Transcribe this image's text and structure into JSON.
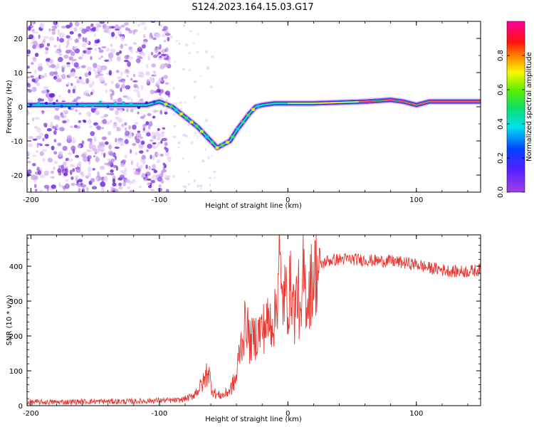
{
  "title": "S124.2023.164.15.03.G17",
  "chart_data": [
    {
      "type": "heatmap",
      "xlabel": "Height of straight line (km)",
      "ylabel": "Frequency (Hz)",
      "xlim": [
        -203,
        150
      ],
      "ylim": [
        -25,
        25
      ],
      "xticks": [
        -200,
        -100,
        0,
        100
      ],
      "yticks": [
        -20,
        -10,
        0,
        10,
        20
      ],
      "colorbar": {
        "label": "Normalized spectral amplitude",
        "range": [
          0.0,
          1.0
        ],
        "ticks": [
          "0.0",
          "0.2",
          "0.4",
          "0.6",
          "0.8"
        ],
        "colormap": "rainbow (violet→blue→cyan→green→yellow→orange→red→magenta)"
      },
      "ridge": {
        "x": [
          -203,
          -150,
          -110,
          -100,
          -90,
          -80,
          -70,
          -60,
          -55,
          -50,
          -45,
          -40,
          -30,
          -25,
          -20,
          -10,
          0,
          20,
          60,
          80,
          90,
          100,
          110,
          150
        ],
        "y": [
          0.5,
          0.5,
          0.5,
          1.5,
          0,
          -3,
          -6,
          -10,
          -12,
          -11,
          -10,
          -7,
          -2,
          0,
          0.5,
          1,
          1,
          1,
          1.5,
          2,
          1.5,
          0.5,
          1.5,
          1.5
        ]
      },
      "noise_region_x": [
        -203,
        -92
      ]
    },
    {
      "type": "line",
      "xlabel": "Height of straight line (km)",
      "ylabel": "SNR (10 * v/v)",
      "xlim": [
        -203,
        150
      ],
      "ylim": [
        0,
        490
      ],
      "xticks": [
        -200,
        -100,
        0,
        100
      ],
      "yticks": [
        0,
        100,
        200,
        300,
        400
      ],
      "color": "#e83a34",
      "series": [
        {
          "x": [
            -203,
            -180,
            -150,
            -120,
            -100,
            -85,
            -75,
            -70,
            -65,
            -62,
            -60,
            -58,
            -55,
            -50,
            -45,
            -40,
            -38,
            -35,
            -32,
            -30,
            -25,
            -20,
            -15,
            -10,
            -8,
            -7,
            -5,
            -3,
            0,
            3,
            5,
            8,
            10,
            12,
            15,
            18,
            20,
            25,
            30,
            40,
            50,
            60,
            70,
            80,
            90,
            100,
            110,
            120,
            130,
            140,
            150
          ],
          "y": [
            10,
            10,
            12,
            12,
            15,
            15,
            25,
            45,
            70,
            110,
            60,
            40,
            30,
            30,
            45,
            80,
            150,
            200,
            250,
            180,
            200,
            220,
            240,
            250,
            330,
            480,
            290,
            320,
            300,
            350,
            260,
            340,
            200,
            380,
            300,
            350,
            380,
            400,
            415,
            420,
            420,
            418,
            415,
            415,
            410,
            405,
            395,
            390,
            385,
            385,
            390
          ]
        }
      ]
    }
  ]
}
